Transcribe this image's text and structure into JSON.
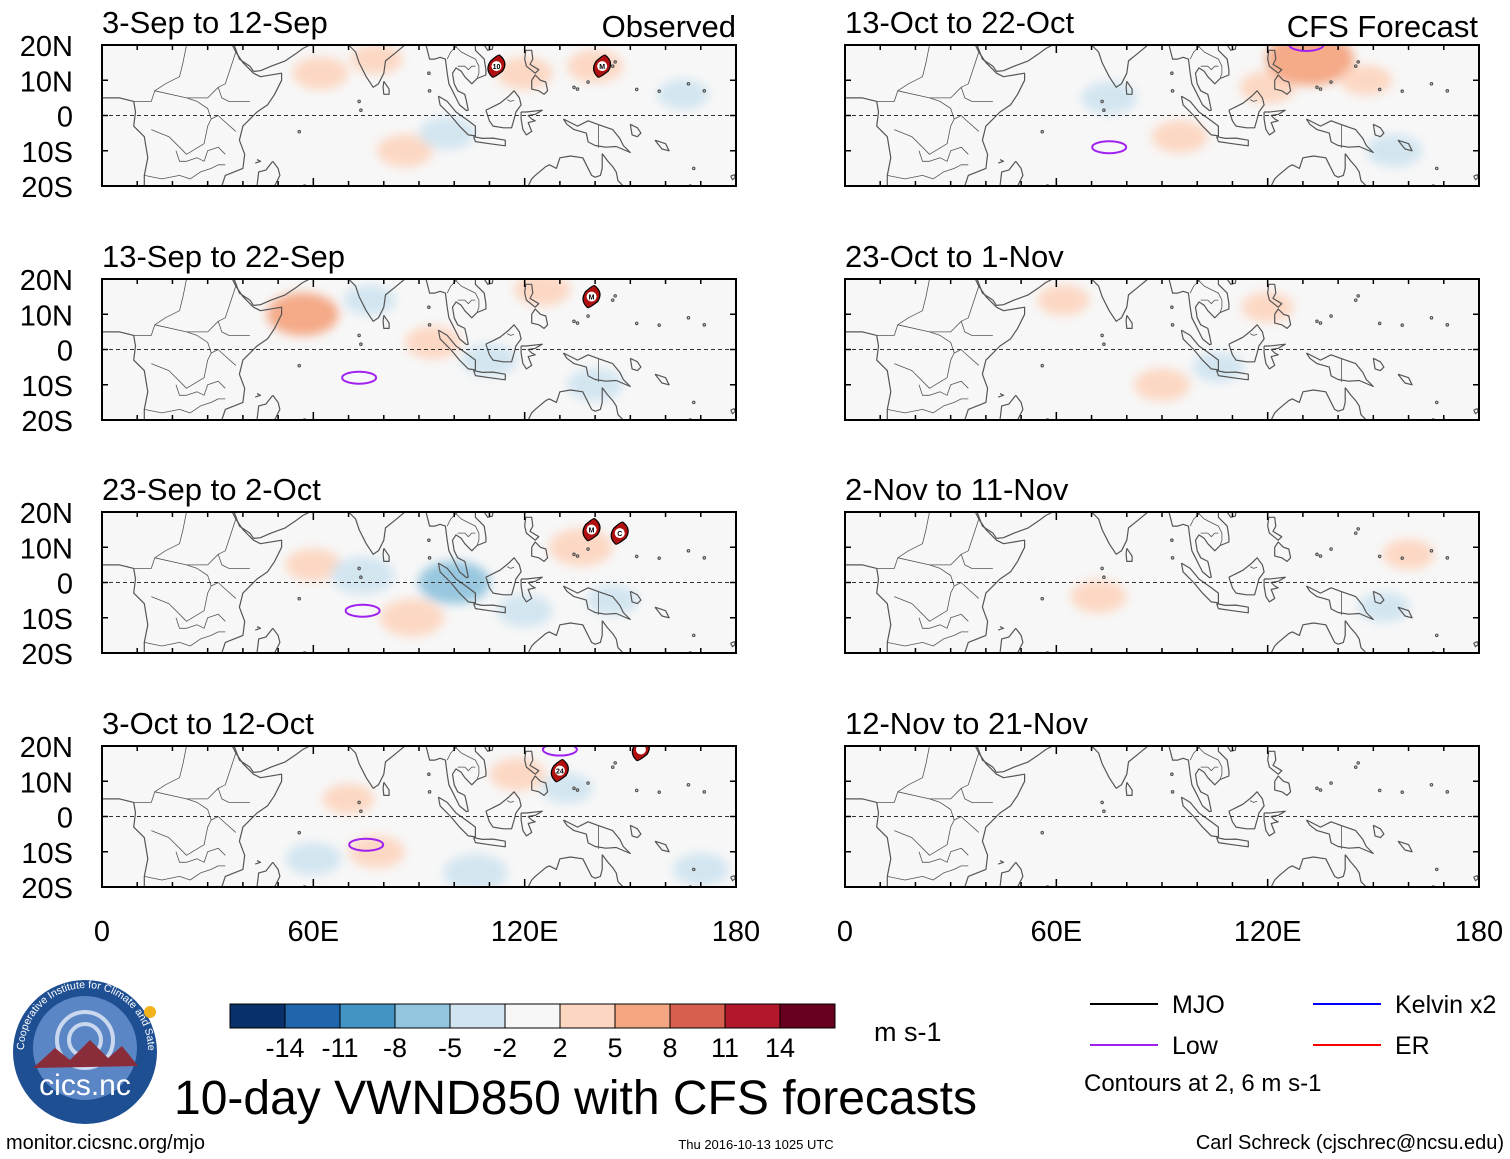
{
  "chart_data": {
    "type": "heatmap",
    "title": "10-day VWND850 with CFS forecasts",
    "variable": "VWND850",
    "units": "m s-1",
    "x_range": [
      0,
      180
    ],
    "y_range": [
      -20,
      20
    ],
    "yticks": [
      "20N",
      "10N",
      "0",
      "10S",
      "20S"
    ],
    "xticks": [
      "0",
      "60E",
      "120E",
      "180"
    ],
    "column_labels": {
      "left": "Observed",
      "right": "CFS Forecast"
    },
    "panels": [
      {
        "label": "3-Sep to 12-Sep",
        "kind": "observed",
        "anomalies": [
          {
            "lon": 62,
            "lat": 12,
            "value": 3
          },
          {
            "lon": 78,
            "lat": 16,
            "value": 2.5
          },
          {
            "lon": 86,
            "lat": -10,
            "value": 3
          },
          {
            "lon": 98,
            "lat": -5,
            "value": -3
          },
          {
            "lon": 120,
            "lat": 12,
            "value": 3
          },
          {
            "lon": 140,
            "lat": 14,
            "value": 3
          },
          {
            "lon": 165,
            "lat": 6,
            "value": -2.5
          }
        ],
        "low_contours": [],
        "storms": [
          {
            "lon": 112,
            "lat": 14,
            "label": "10"
          },
          {
            "lon": 142,
            "lat": 14,
            "label": "M"
          }
        ]
      },
      {
        "label": "13-Sep to 22-Sep",
        "kind": "observed",
        "anomalies": [
          {
            "lon": 57,
            "lat": 10,
            "value": 5
          },
          {
            "lon": 76,
            "lat": 14,
            "value": -2.5
          },
          {
            "lon": 94,
            "lat": 2,
            "value": 3
          },
          {
            "lon": 110,
            "lat": -3,
            "value": -3
          },
          {
            "lon": 140,
            "lat": -10,
            "value": -3
          },
          {
            "lon": 125,
            "lat": 17,
            "value": 3
          }
        ],
        "low_contours": [
          {
            "lon": 73,
            "lat": -8
          }
        ],
        "storms": [
          {
            "lon": 139,
            "lat": 15,
            "label": "M"
          }
        ]
      },
      {
        "label": "23-Sep to 2-Oct",
        "kind": "observed",
        "anomalies": [
          {
            "lon": 60,
            "lat": 5,
            "value": 3
          },
          {
            "lon": 74,
            "lat": 2,
            "value": -4
          },
          {
            "lon": 88,
            "lat": -10,
            "value": 4
          },
          {
            "lon": 100,
            "lat": 0,
            "value": -5
          },
          {
            "lon": 120,
            "lat": -8,
            "value": -3
          },
          {
            "lon": 136,
            "lat": 10,
            "value": 4
          },
          {
            "lon": 145,
            "lat": -5,
            "value": -2.5
          }
        ],
        "low_contours": [
          {
            "lon": 74,
            "lat": -8
          }
        ],
        "storms": [
          {
            "lon": 139,
            "lat": 15,
            "label": "M"
          },
          {
            "lon": 147,
            "lat": 14,
            "label": "C"
          }
        ]
      },
      {
        "label": "3-Oct to 12-Oct",
        "kind": "observed",
        "anomalies": [
          {
            "lon": 60,
            "lat": -12,
            "value": -3
          },
          {
            "lon": 70,
            "lat": 5,
            "value": 2.5
          },
          {
            "lon": 78,
            "lat": -10,
            "value": 3
          },
          {
            "lon": 106,
            "lat": -16,
            "value": -4
          },
          {
            "lon": 118,
            "lat": 12,
            "value": 3
          },
          {
            "lon": 132,
            "lat": 8,
            "value": -2.5
          },
          {
            "lon": 170,
            "lat": -15,
            "value": -3
          }
        ],
        "low_contours": [
          {
            "lon": 75,
            "lat": -8
          },
          {
            "lon": 130,
            "lat": 19
          }
        ],
        "storms": [
          {
            "lon": 130,
            "lat": 13,
            "label": "24"
          },
          {
            "lon": 153,
            "lat": 19,
            "label": ""
          }
        ]
      },
      {
        "label": "13-Oct to 22-Oct",
        "kind": "forecast",
        "anomalies": [
          {
            "lon": 75,
            "lat": 5,
            "value": -3
          },
          {
            "lon": 95,
            "lat": -6,
            "value": 3
          },
          {
            "lon": 120,
            "lat": 8,
            "value": 3
          },
          {
            "lon": 132,
            "lat": 16,
            "value": 7
          },
          {
            "lon": 148,
            "lat": 10,
            "value": 2.5
          },
          {
            "lon": 156,
            "lat": -10,
            "value": -3
          }
        ],
        "low_contours": [
          {
            "lon": 75,
            "lat": -9
          },
          {
            "lon": 131,
            "lat": 20
          }
        ],
        "storms": []
      },
      {
        "label": "23-Oct to 1-Nov",
        "kind": "forecast",
        "anomalies": [
          {
            "lon": 62,
            "lat": 14,
            "value": 2.5
          },
          {
            "lon": 90,
            "lat": -10,
            "value": 3
          },
          {
            "lon": 120,
            "lat": 12,
            "value": 2.5
          },
          {
            "lon": 106,
            "lat": -5,
            "value": -2.5
          }
        ],
        "low_contours": [],
        "storms": []
      },
      {
        "label": "2-Nov to 11-Nov",
        "kind": "forecast",
        "anomalies": [
          {
            "lon": 72,
            "lat": -4,
            "value": 3
          },
          {
            "lon": 160,
            "lat": 8,
            "value": 2.5
          },
          {
            "lon": 153,
            "lat": -7,
            "value": -2.5
          }
        ],
        "low_contours": [],
        "storms": []
      },
      {
        "label": "12-Nov to 21-Nov",
        "kind": "forecast",
        "anomalies": [],
        "low_contours": [],
        "storms": []
      }
    ],
    "colorbar": {
      "ticks": [
        "-14",
        "-11",
        "-8",
        "-5",
        "-2",
        "2",
        "5",
        "8",
        "11",
        "14"
      ],
      "colors": [
        "#08306b",
        "#2166ac",
        "#4393c3",
        "#92c5de",
        "#d1e5f0",
        "#f7f7f7",
        "#fdd6c1",
        "#f4a582",
        "#d6604d",
        "#b2182b",
        "#67001f"
      ]
    },
    "legend": [
      {
        "label": "MJO",
        "color": "#000000"
      },
      {
        "label": "Kelvin x2",
        "color": "#0000ff"
      },
      {
        "label": "Low",
        "color": "#a020f0"
      },
      {
        "label": "ER",
        "color": "#ff0000"
      }
    ],
    "contour_note": "Contours at 2, 6 m s-1"
  },
  "logo": {
    "text": "cics.nc",
    "ring_text": "Cooperative Institute for Climate and Satellites"
  },
  "footer": {
    "url": "monitor.cicsnc.org/mjo",
    "timestamp": "Thu 2016-10-13 1025 UTC",
    "author": "Carl Schreck (cjschrec@ncsu.edu)"
  }
}
